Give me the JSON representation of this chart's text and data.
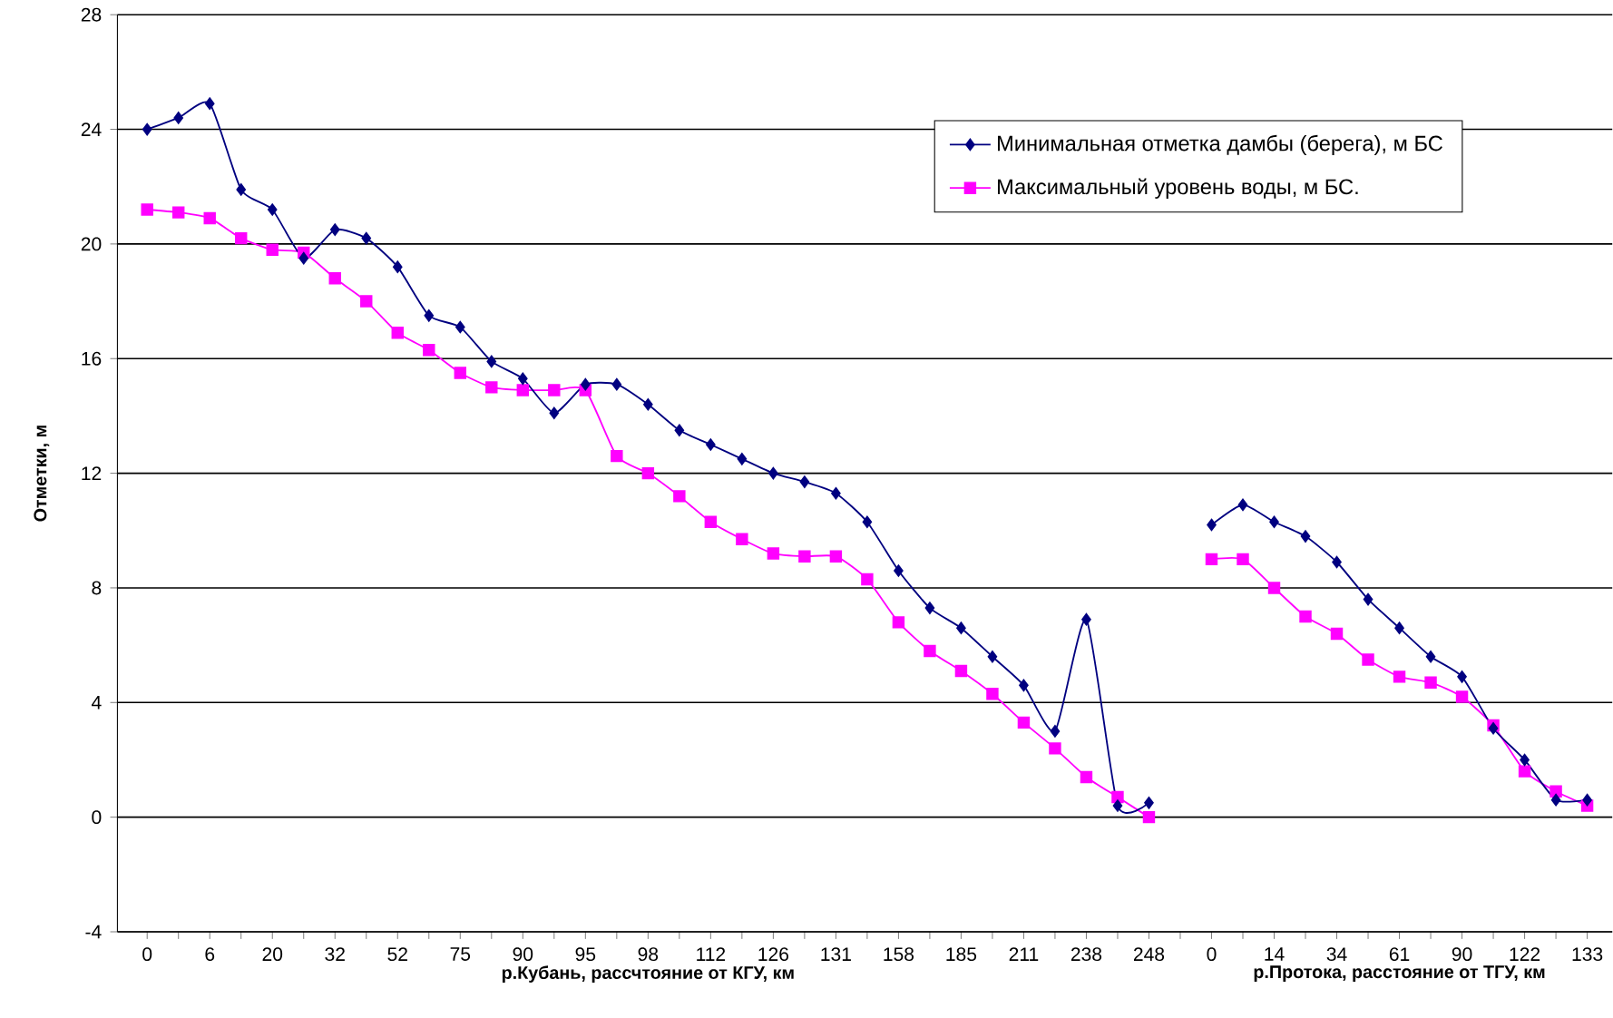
{
  "chart_data": {
    "type": "line",
    "ylabel": "Отметки, м",
    "annotations": [
      "р.Кубань, рассчтояние от КГУ, км",
      "р.Протока, расстояние от ТГУ, км"
    ],
    "categories": [
      "0",
      null,
      "6",
      null,
      "20",
      null,
      "32",
      null,
      "52",
      null,
      "75",
      null,
      "90",
      null,
      "95",
      null,
      "98",
      null,
      "112",
      null,
      "126",
      null,
      "131",
      null,
      "158",
      null,
      "185",
      null,
      "211",
      null,
      "238",
      null,
      "248",
      null,
      "0",
      null,
      "14",
      null,
      "34",
      null,
      "61",
      null,
      "90",
      null,
      "122",
      null,
      "133"
    ],
    "series": [
      {
        "name": "Минимальная отметка дамбы (берега), м БС",
        "color": "#000080",
        "marker": "diamond",
        "values": [
          24.0,
          24.4,
          24.9,
          21.9,
          21.2,
          19.5,
          20.5,
          20.2,
          19.2,
          17.5,
          17.1,
          15.9,
          15.3,
          14.1,
          15.1,
          15.1,
          14.4,
          13.5,
          13.0,
          12.5,
          12.0,
          11.7,
          11.3,
          10.3,
          8.6,
          7.3,
          6.6,
          5.6,
          4.6,
          3.0,
          6.9,
          0.4,
          0.5,
          null,
          10.2,
          10.9,
          10.3,
          9.8,
          8.9,
          7.6,
          6.6,
          5.6,
          4.9,
          3.1,
          2.0,
          0.6,
          0.6
        ]
      },
      {
        "name": "Максимальный уровень воды, м БС.",
        "color": "#ff00ff",
        "marker": "square",
        "values": [
          21.2,
          21.1,
          20.9,
          20.2,
          19.8,
          19.7,
          18.8,
          18.0,
          16.9,
          16.3,
          15.5,
          15.0,
          14.9,
          14.9,
          14.9,
          12.6,
          12.0,
          11.2,
          10.3,
          9.7,
          9.2,
          9.1,
          9.1,
          8.3,
          6.8,
          5.8,
          5.1,
          4.3,
          3.3,
          2.4,
          1.4,
          0.7,
          0.0,
          null,
          9.0,
          9.0,
          8.0,
          7.0,
          6.4,
          5.5,
          4.9,
          4.7,
          4.2,
          3.2,
          1.6,
          0.9,
          0.4
        ]
      }
    ],
    "ylim": [
      -4,
      28
    ],
    "yticks": [
      -4,
      0,
      4,
      8,
      12,
      16,
      20,
      24,
      28
    ],
    "grid": "y",
    "legend": "top right",
    "line_style": "solid"
  }
}
